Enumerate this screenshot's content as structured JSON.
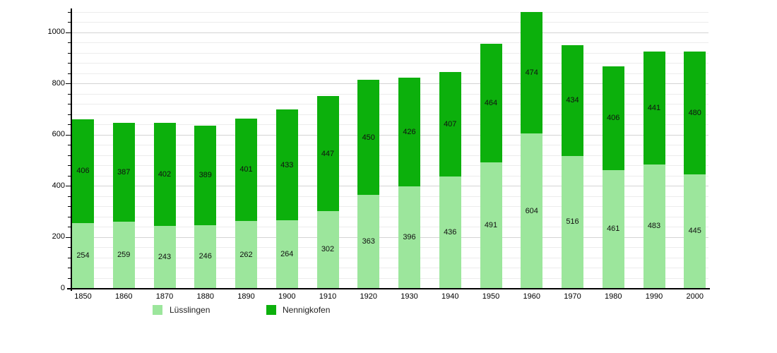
{
  "chart_data": {
    "type": "bar",
    "stacked": true,
    "title": "",
    "xlabel": "",
    "ylabel": "",
    "categories": [
      "1850",
      "1860",
      "1870",
      "1880",
      "1890",
      "1900",
      "1910",
      "1920",
      "1930",
      "1940",
      "1950",
      "1960",
      "1970",
      "1980",
      "1990",
      "2000"
    ],
    "series": [
      {
        "name": "Lüsslingen",
        "color": "#9ce69c",
        "values": [
          254,
          259,
          243,
          246,
          262,
          264,
          302,
          363,
          396,
          436,
          491,
          604,
          516,
          461,
          483,
          445
        ]
      },
      {
        "name": "Nennigkofen",
        "color": "#0cb00c",
        "values": [
          406,
          387,
          402,
          389,
          401,
          433,
          447,
          450,
          426,
          407,
          464,
          474,
          434,
          406,
          441,
          480
        ]
      }
    ],
    "totals": [
      660,
      646,
      645,
      635,
      663,
      697,
      749,
      813,
      822,
      843,
      955,
      1078,
      950,
      867,
      924,
      925
    ],
    "ylim": [
      0,
      1094
    ],
    "yticks": [
      0,
      200,
      400,
      600,
      800,
      1000
    ],
    "minor_tick_step": 40,
    "grid": "horizontal",
    "legend_position": "bottom-left",
    "value_label_color": "#111111",
    "axis_color": "#000000",
    "major_grid_color": "#d4d4d4",
    "minor_grid_color": "#ececec"
  }
}
